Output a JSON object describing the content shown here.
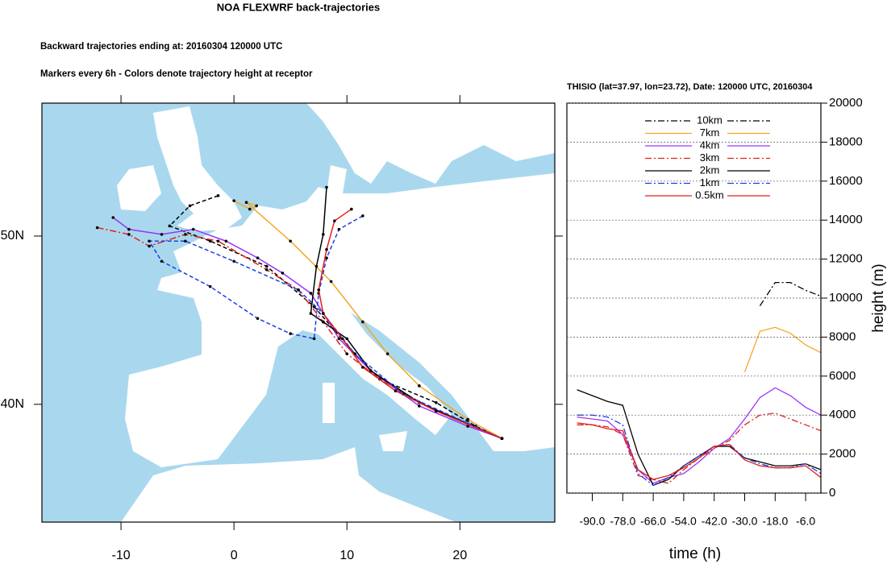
{
  "chart_data": [
    {
      "type": "trajectory-map",
      "title": "NOA FLEXWRF back-trajectories",
      "subtitles": [
        "Backward trajectories ending at: 20160304  120000 UTC",
        "Markers every 6h - Colors denote trajectory height at receptor"
      ],
      "xlim": [
        -17,
        28.4
      ],
      "ylim": [
        33,
        57.9
      ],
      "xticks": [
        -10,
        0,
        10,
        20
      ],
      "yticks": [
        {
          "value": 40,
          "label": "40N"
        },
        {
          "value": 50,
          "label": "50N"
        }
      ],
      "series": [
        {
          "color": "#000000",
          "style": "dashed",
          "x": [
            -1.4,
            -3.9,
            -5.7,
            -2.1,
            2.9,
            7.1,
            10.7,
            12.9,
            17.9,
            21.4,
            23.72
          ],
          "values": [
            52.4,
            51.8,
            50.6,
            49.7,
            48.2,
            45.8,
            43.0,
            41.5,
            40.1,
            38.7,
            37.97
          ]
        },
        {
          "color": "#f5a623",
          "style": "solid",
          "x": [
            0,
            1.4,
            2,
            1.1,
            5,
            8.6,
            11.4,
            13.6,
            16.4,
            20.7,
            23.72
          ],
          "values": [
            52.1,
            51.6,
            51.8,
            52.0,
            49.7,
            47.3,
            44.9,
            43.0,
            41.1,
            39.1,
            37.97
          ]
        },
        {
          "color": "#9933ff",
          "style": "solid",
          "x": [
            -10.7,
            -9.3,
            -6.4,
            -3.6,
            -0.7,
            2.1,
            4.3,
            6.8,
            9.3,
            12.1,
            16.4,
            20.7,
            23.72
          ],
          "values": [
            51.1,
            50.4,
            50.1,
            50.4,
            49.7,
            48.7,
            47.8,
            46.6,
            43.9,
            42.0,
            39.9,
            38.7,
            37.97
          ]
        },
        {
          "color": "#e0201b",
          "style": "dash-dot",
          "x": [
            -12.1,
            -9.3,
            -7.5,
            -4.3,
            -1.4,
            2.9,
            5.7,
            7.9,
            10,
            12.9,
            17.9,
            23.72
          ],
          "values": [
            50.5,
            50.1,
            49.4,
            50.1,
            49.7,
            48.0,
            46.8,
            44.9,
            43.0,
            41.5,
            39.6,
            37.97
          ]
        },
        {
          "color": "#000000",
          "style": "solid",
          "x": [
            8.2,
            7.9,
            7.3,
            6.8,
            7.9,
            10,
            12.1,
            16.4,
            23.72
          ],
          "values": [
            52.9,
            50.1,
            48.2,
            45.4,
            44.9,
            43.9,
            42.0,
            40.1,
            37.97
          ]
        },
        {
          "color": "#1a3fe0",
          "style": "dashed",
          "x": [
            11.4,
            9.3,
            8.2,
            7.5,
            7.1,
            5,
            2.1,
            -2.1,
            -6.4,
            -7.5,
            -4.3,
            0,
            5.7,
            7.9,
            10.7,
            15,
            23.72
          ],
          "values": [
            51.2,
            50.4,
            48.7,
            46.6,
            43.9,
            44.2,
            45.1,
            47.0,
            48.5,
            49.7,
            49.7,
            48.5,
            46.8,
            45.4,
            43.0,
            40.6,
            37.97
          ]
        },
        {
          "color": "#e0201b",
          "style": "solid",
          "x": [
            10.4,
            8.9,
            8.2,
            7.5,
            7.9,
            9.6,
            11.4,
            14.3,
            17.9,
            23.72
          ],
          "values": [
            51.6,
            50.9,
            49.2,
            46.8,
            45.4,
            43.9,
            42.2,
            40.8,
            39.6,
            37.97
          ]
        }
      ]
    },
    {
      "type": "line",
      "title": "THISIO (lat=37.97,  lon=23.72), Date: 120000 UTC, 20160304",
      "xlabel": "time (h)",
      "ylabel": "height (m)",
      "xlim": [
        -100,
        0
      ],
      "ylim": [
        0,
        20000
      ],
      "xticks": [
        {
          "value": -90,
          "label": "-90.0"
        },
        {
          "value": -78,
          "label": "-78.0"
        },
        {
          "value": -66,
          "label": "-66.0"
        },
        {
          "value": -54,
          "label": "-54.0"
        },
        {
          "value": -42,
          "label": "-42.0"
        },
        {
          "value": -30,
          "label": "-30.0"
        },
        {
          "value": -18,
          "label": "-18.0"
        },
        {
          "value": -6,
          "label": "-6.0"
        }
      ],
      "yticks": [
        0,
        2000,
        4000,
        6000,
        8000,
        10000,
        12000,
        14000,
        16000,
        18000,
        20000
      ],
      "grid": true,
      "legend": "top",
      "x": [
        -96,
        -90,
        -84,
        -78,
        -72,
        -66,
        -60,
        -54,
        -48,
        -42,
        -36,
        -30,
        -24,
        -18,
        -12,
        -6,
        0
      ],
      "series": [
        {
          "name": "10km",
          "color": "#000000",
          "style": "dash-dot",
          "values": [
            null,
            null,
            null,
            null,
            null,
            null,
            null,
            null,
            null,
            null,
            null,
            null,
            9600,
            10800,
            10800,
            10400,
            10100
          ]
        },
        {
          "name": "7km",
          "color": "#f5a623",
          "style": "solid",
          "values": [
            null,
            null,
            null,
            null,
            null,
            null,
            null,
            null,
            null,
            null,
            null,
            6200,
            8300,
            8500,
            8200,
            7600,
            7200
          ]
        },
        {
          "name": "4km",
          "color": "#9933ff",
          "style": "solid",
          "values": [
            3900,
            3800,
            3700,
            3000,
            1200,
            500,
            800,
            1000,
            1600,
            2300,
            2800,
            3800,
            4900,
            5400,
            5000,
            4400,
            4000
          ]
        },
        {
          "name": "3km",
          "color": "#e0201b",
          "style": "dash-dot",
          "values": [
            3500,
            3500,
            3400,
            3000,
            900,
            700,
            500,
            1200,
            1800,
            2300,
            2700,
            3500,
            4000,
            4100,
            3800,
            3500,
            3200
          ]
        },
        {
          "name": "2km",
          "color": "#000000",
          "style": "solid",
          "values": [
            5300,
            5000,
            4700,
            4500,
            2000,
            400,
            700,
            1400,
            1900,
            2400,
            2400,
            1800,
            1600,
            1400,
            1400,
            1500,
            1200
          ]
        },
        {
          "name": "1km",
          "color": "#1a3fe0",
          "style": "dash-dot",
          "values": [
            4000,
            4000,
            3900,
            3500,
            1000,
            400,
            800,
            1400,
            1900,
            2400,
            2500,
            1800,
            1500,
            1300,
            1300,
            1500,
            1000
          ]
        },
        {
          "name": "0.5km",
          "color": "#e0201b",
          "style": "solid",
          "values": [
            3600,
            3500,
            3300,
            3200,
            1200,
            700,
            900,
            1300,
            1800,
            2400,
            2500,
            1700,
            1400,
            1300,
            1300,
            1400,
            800
          ]
        }
      ]
    }
  ]
}
